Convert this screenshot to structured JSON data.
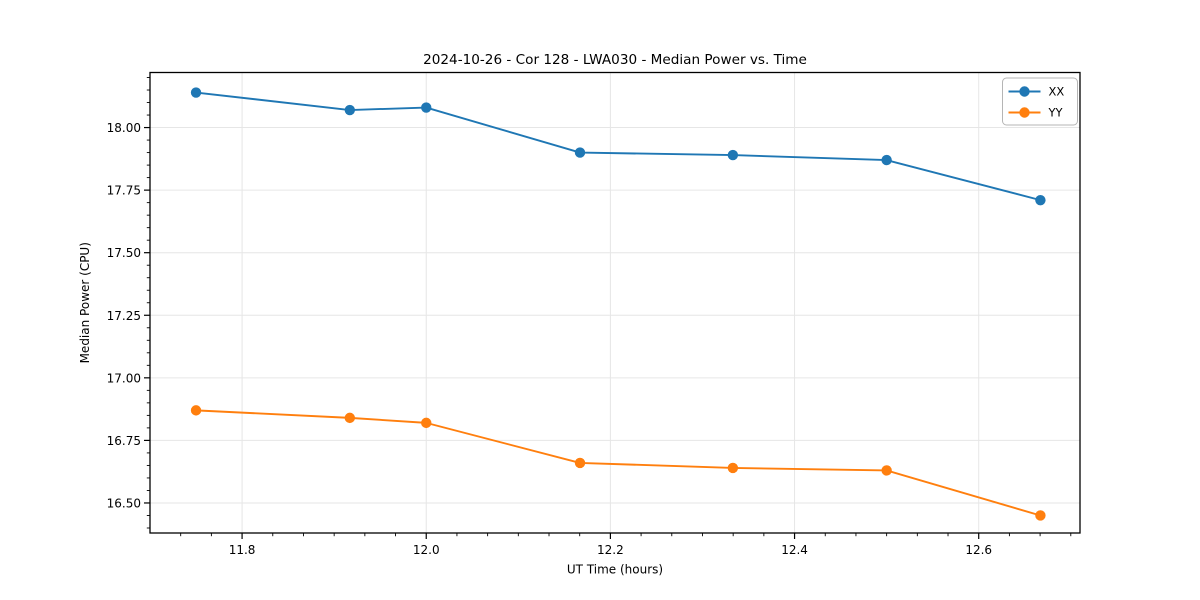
{
  "window": {
    "background": "#ffffff"
  },
  "chart_data": {
    "type": "line",
    "title": "2024-10-26 - Cor 128 - LWA030 - Median Power vs. Time",
    "xlabel": "UT Time (hours)",
    "ylabel": "Median Power (CPU)",
    "x": [
      11.75,
      11.917,
      12.0,
      12.167,
      12.333,
      12.5,
      12.667
    ],
    "series": [
      {
        "name": "XX",
        "color": "#1f77b4",
        "marker": "circle",
        "values": [
          18.14,
          18.07,
          18.08,
          17.9,
          17.89,
          17.87,
          17.71
        ]
      },
      {
        "name": "YY",
        "color": "#ff7f0e",
        "marker": "circle",
        "values": [
          16.87,
          16.84,
          16.82,
          16.66,
          16.64,
          16.63,
          16.45
        ]
      }
    ],
    "xlim": [
      11.7,
      12.71
    ],
    "ylim": [
      16.38,
      18.22
    ],
    "xticks": [
      11.8,
      12.0,
      12.2,
      12.4,
      12.6
    ],
    "xtick_labels": [
      "11.8",
      "12.0",
      "12.2",
      "12.4",
      "12.6"
    ],
    "yticks": [
      16.5,
      16.75,
      17.0,
      17.25,
      17.5,
      17.75,
      18.0
    ],
    "ytick_labels": [
      "16.50",
      "16.75",
      "17.00",
      "17.25",
      "17.50",
      "17.75",
      "18.00"
    ],
    "minor_tick_divisions": {
      "x": 6,
      "y": 5
    },
    "grid": true,
    "grid_color": "#e6e6e6",
    "axis_color": "#000000",
    "legend": {
      "position": "upper right",
      "entries": [
        "XX",
        "YY"
      ]
    }
  }
}
